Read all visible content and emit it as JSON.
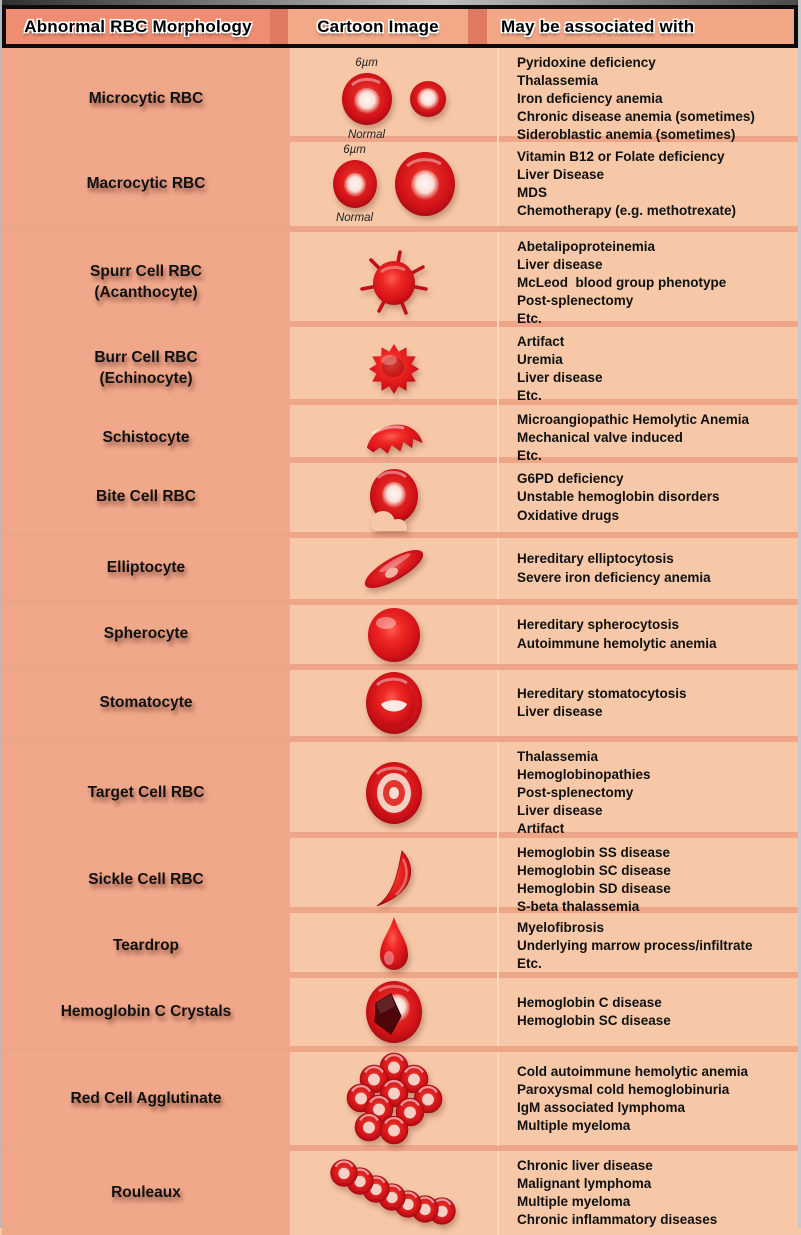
{
  "palette": {
    "col1_bg": "#f1a78a",
    "col23_bg": "#f6c8a8",
    "divider": "#eda687",
    "header_c1": "#ef8d72",
    "header_c2": "#f3a988",
    "header_c3": "#f2a887",
    "header_gap": "#e07a60",
    "rbc_red": "#e02320"
  },
  "table": {
    "headers": [
      "Abnormal RBC Morphology",
      "Cartoon Image",
      "May be associated with"
    ],
    "rows": [
      {
        "name": "Microcytic RBC",
        "icon": "microcytic-rbc-icon",
        "scale_top_label": "6µm",
        "scale_bottom_label": "Normal",
        "associations": [
          "Pyridoxine deficiency",
          "Thalassemia",
          "Iron deficiency anemia",
          "Chronic disease anemia (sometimes)",
          "Sideroblastic anemia (sometimes)"
        ]
      },
      {
        "name": "Macrocytic RBC",
        "icon": "macrocytic-rbc-icon",
        "scale_top_label": "6µm",
        "scale_bottom_label": "Normal",
        "associations": [
          "Vitamin B12 or Folate deficiency",
          "Liver Disease",
          "MDS",
          "Chemotherapy (e.g. methotrexate)"
        ]
      },
      {
        "name": "Spurr Cell RBC\n(Acanthocyte)",
        "icon": "acanthocyte-icon",
        "associations": [
          "Abetalipoproteinemia",
          "Liver disease",
          "McLeod  blood group phenotype",
          "Post-splenectomy",
          "Etc."
        ]
      },
      {
        "name": "Burr Cell RBC\n(Echinocyte)",
        "icon": "echinocyte-icon",
        "associations": [
          "Artifact",
          "Uremia",
          "Liver disease",
          "Etc."
        ]
      },
      {
        "name": "Schistocyte",
        "icon": "schistocyte-icon",
        "associations": [
          "Microangiopathic Hemolytic Anemia",
          "Mechanical valve induced",
          "Etc."
        ]
      },
      {
        "name": "Bite Cell RBC",
        "icon": "bite-cell-icon",
        "associations": [
          "G6PD deficiency",
          "Unstable hemoglobin disorders",
          "Oxidative drugs"
        ]
      },
      {
        "name": "Elliptocyte",
        "icon": "elliptocyte-icon",
        "associations": [
          "Hereditary elliptocytosis",
          "Severe iron deficiency anemia"
        ]
      },
      {
        "name": "Spherocyte",
        "icon": "spherocyte-icon",
        "associations": [
          "Hereditary spherocytosis",
          "Autoimmune hemolytic anemia"
        ]
      },
      {
        "name": "Stomatocyte",
        "icon": "stomatocyte-icon",
        "associations": [
          "Hereditary stomatocytosis",
          "Liver disease"
        ]
      },
      {
        "name": "Target Cell RBC",
        "icon": "target-cell-icon",
        "associations": [
          "Thalassemia",
          "Hemoglobinopathies",
          "Post-splenectomy",
          "Liver disease",
          "Artifact"
        ]
      },
      {
        "name": "Sickle Cell RBC",
        "icon": "sickle-cell-icon",
        "associations": [
          "Hemoglobin SS disease",
          "Hemoglobin SC disease",
          "Hemoglobin SD disease",
          "S-beta thalassemia"
        ]
      },
      {
        "name": "Teardrop",
        "icon": "teardrop-icon",
        "associations": [
          "Myelofibrosis",
          "Underlying marrow process/infiltrate",
          "Etc."
        ]
      },
      {
        "name": "Hemoglobin C Crystals",
        "icon": "hemoglobin-c-crystal-icon",
        "associations": [
          "Hemoglobin C disease",
          "Hemoglobin SC disease"
        ]
      },
      {
        "name": "Red Cell Agglutinate",
        "icon": "red-cell-agglutinate-icon",
        "associations": [
          "Cold autoimmune hemolytic anemia",
          "Paroxysmal cold hemoglobinuria",
          "IgM associated lymphoma",
          "Multiple myeloma"
        ]
      },
      {
        "name": "Rouleaux",
        "icon": "rouleaux-icon",
        "associations": [
          "Chronic liver disease",
          "Malignant lymphoma",
          "Multiple myeloma",
          "Chronic inflammatory diseases"
        ]
      }
    ]
  }
}
